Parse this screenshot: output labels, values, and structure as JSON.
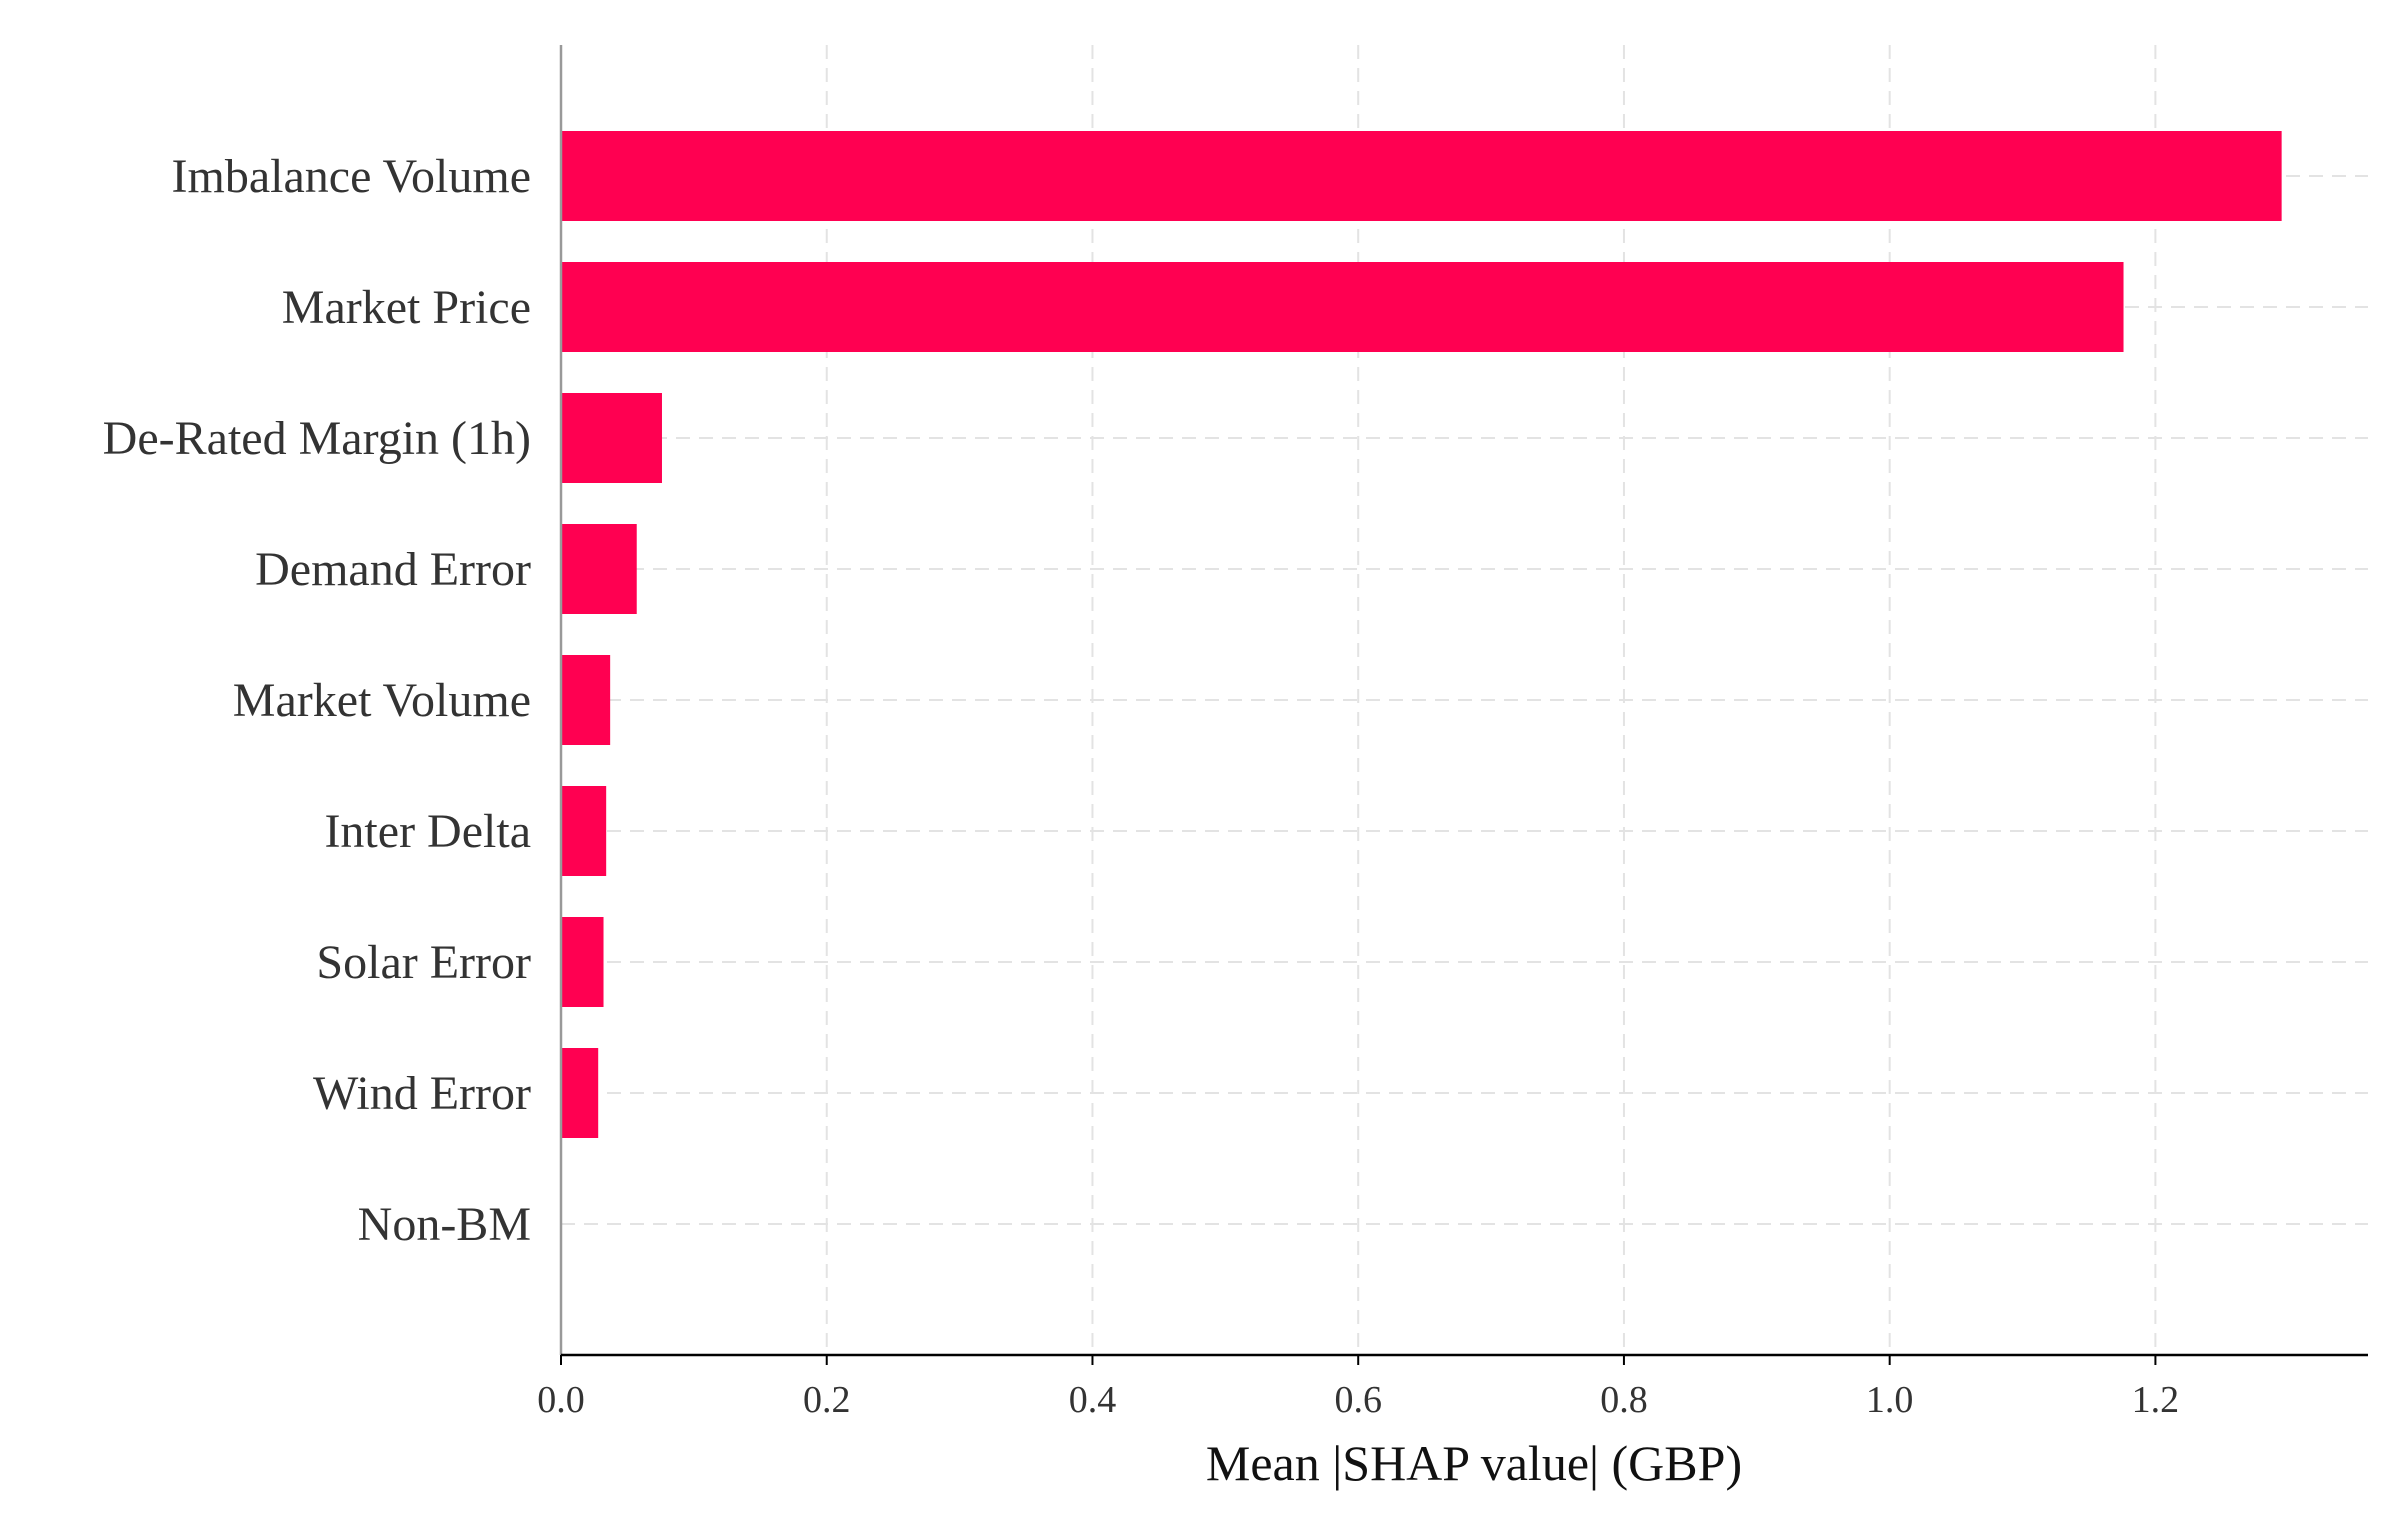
{
  "chart_data": {
    "type": "bar",
    "orientation": "horizontal",
    "categories": [
      "Imbalance Volume",
      "Market Price",
      "De-Rated Margin (1h)",
      "Demand Error",
      "Market Volume",
      "Inter Delta",
      "Solar Error",
      "Wind Error",
      "Non-BM"
    ],
    "values": [
      1.295,
      1.176,
      0.076,
      0.057,
      0.037,
      0.034,
      0.032,
      0.028,
      0.0
    ],
    "xlabel": "Mean |SHAP value| (GBP)",
    "ylabel": "",
    "title": "",
    "xlim": [
      0.0,
      1.36
    ],
    "xticks": [
      "0.0",
      "0.2",
      "0.4",
      "0.6",
      "0.8",
      "1.0",
      "1.2"
    ],
    "grid": true,
    "colors": {
      "bar": "#ff0051",
      "grid": "#e3e3e3",
      "axis": "#000000",
      "left_spine": "#999999",
      "text": "#333333"
    }
  }
}
